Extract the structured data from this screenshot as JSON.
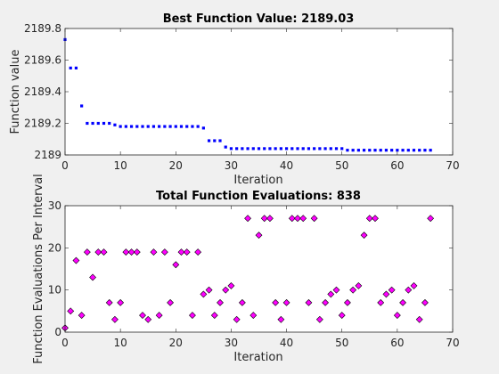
{
  "chart_data": [
    {
      "type": "scatter",
      "title": "Best Function Value: 2189.03",
      "xlabel": "Iteration",
      "ylabel": "Function value",
      "xlim": [
        0,
        70
      ],
      "ylim": [
        2189,
        2189.8
      ],
      "xticks": [
        0,
        10,
        20,
        30,
        40,
        50,
        60,
        70
      ],
      "yticks": [
        2189,
        2189.2,
        2189.4,
        2189.6,
        2189.8
      ],
      "marker": "square",
      "color": "#0000ff",
      "grid": false,
      "x": [
        0,
        1,
        2,
        3,
        4,
        5,
        6,
        7,
        8,
        9,
        10,
        11,
        12,
        13,
        14,
        15,
        16,
        17,
        18,
        19,
        20,
        21,
        22,
        23,
        24,
        25,
        26,
        27,
        28,
        29,
        30,
        31,
        32,
        33,
        34,
        35,
        36,
        37,
        38,
        39,
        40,
        41,
        42,
        43,
        44,
        45,
        46,
        47,
        48,
        49,
        50,
        51,
        52,
        53,
        54,
        55,
        56,
        57,
        58,
        59,
        60,
        61,
        62,
        63,
        64,
        65,
        66
      ],
      "y": [
        2189.73,
        2189.55,
        2189.55,
        2189.31,
        2189.2,
        2189.2,
        2189.2,
        2189.2,
        2189.2,
        2189.19,
        2189.18,
        2189.18,
        2189.18,
        2189.18,
        2189.18,
        2189.18,
        2189.18,
        2189.18,
        2189.18,
        2189.18,
        2189.18,
        2189.18,
        2189.18,
        2189.18,
        2189.18,
        2189.17,
        2189.09,
        2189.09,
        2189.09,
        2189.05,
        2189.04,
        2189.04,
        2189.04,
        2189.04,
        2189.04,
        2189.04,
        2189.04,
        2189.04,
        2189.04,
        2189.04,
        2189.04,
        2189.04,
        2189.04,
        2189.04,
        2189.04,
        2189.04,
        2189.04,
        2189.04,
        2189.04,
        2189.04,
        2189.04,
        2189.03,
        2189.03,
        2189.03,
        2189.03,
        2189.03,
        2189.03,
        2189.03,
        2189.03,
        2189.03,
        2189.03,
        2189.03,
        2189.03,
        2189.03,
        2189.03,
        2189.03,
        2189.03
      ]
    },
    {
      "type": "scatter",
      "title": "Total Function Evaluations: 838",
      "xlabel": "Iteration",
      "ylabel": "Function Evaluations Per Interval",
      "xlim": [
        0,
        70
      ],
      "ylim": [
        0,
        30
      ],
      "xticks": [
        0,
        10,
        20,
        30,
        40,
        50,
        60,
        70
      ],
      "yticks": [
        0,
        10,
        20,
        30
      ],
      "marker": "diamond",
      "color": "#ff00ff",
      "grid": false,
      "x": [
        0,
        1,
        2,
        3,
        4,
        5,
        6,
        7,
        8,
        9,
        10,
        11,
        12,
        13,
        14,
        15,
        16,
        17,
        18,
        19,
        20,
        21,
        22,
        23,
        24,
        25,
        26,
        27,
        28,
        29,
        30,
        31,
        32,
        33,
        34,
        35,
        36,
        37,
        38,
        39,
        40,
        41,
        42,
        43,
        44,
        45,
        46,
        47,
        48,
        49,
        50,
        51,
        52,
        53,
        54,
        55,
        56,
        57,
        58,
        59,
        60,
        61,
        62,
        63,
        64,
        65,
        66
      ],
      "y": [
        1,
        5,
        17,
        4,
        19,
        13,
        19,
        19,
        7,
        3,
        7,
        19,
        19,
        19,
        4,
        3,
        19,
        4,
        19,
        7,
        16,
        19,
        19,
        4,
        19,
        9,
        10,
        4,
        7,
        10,
        11,
        3,
        7,
        27,
        4,
        23,
        27,
        27,
        7,
        3,
        7,
        27,
        27,
        27,
        7,
        27,
        3,
        7,
        9,
        10,
        4,
        7,
        10,
        11,
        23,
        27,
        27,
        7,
        9,
        10,
        4,
        7,
        10,
        11,
        3,
        7,
        27
      ]
    }
  ]
}
